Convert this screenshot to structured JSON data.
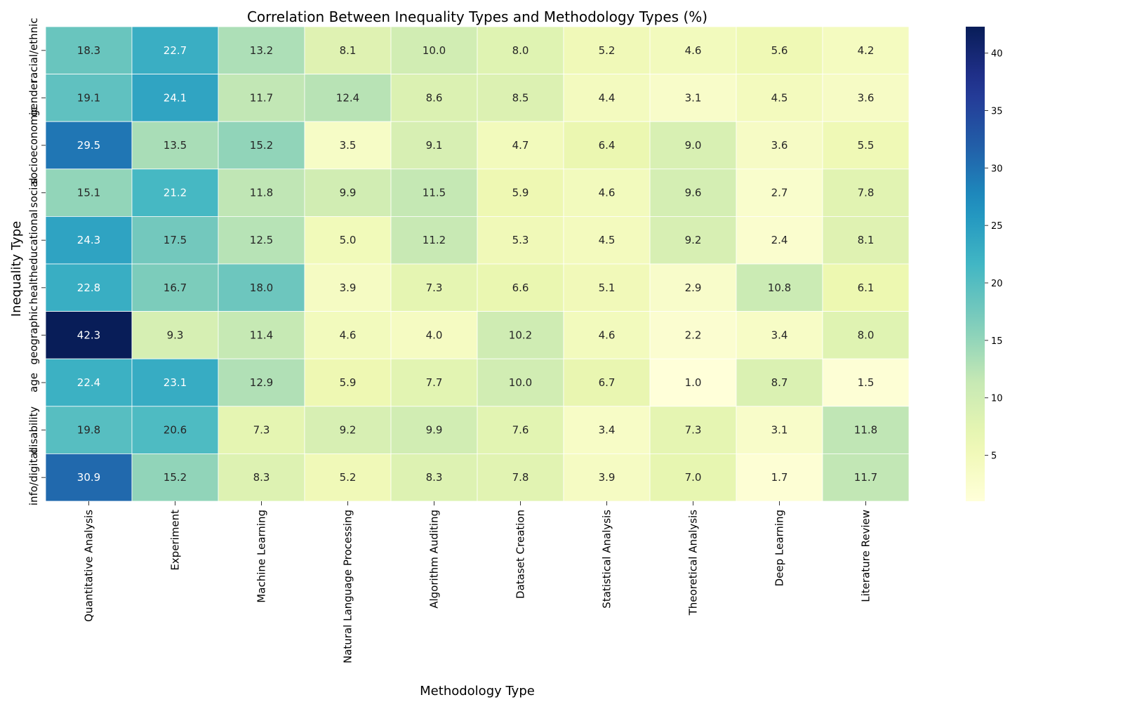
{
  "chart_data": {
    "type": "heatmap",
    "title": "Correlation Between Inequality Types and Methodology Types (%)",
    "xlabel": "Methodology Type",
    "ylabel": "Inequality Type",
    "x_categories": [
      "Quantitative Analysis",
      "Experiment",
      "Machine Learning",
      "Natural Language Processing",
      "Algorithm Auditing",
      "Dataset Creation",
      "Statistical Analysis",
      "Theoretical Analysis",
      "Deep Learning",
      "Literature Review"
    ],
    "y_categories": [
      "racial/ethnic",
      "gender",
      "socioeconomic",
      "social",
      "educational",
      "health",
      "geographic",
      "age",
      "disability",
      "info/digital"
    ],
    "values": [
      [
        18.3,
        22.7,
        13.2,
        8.1,
        10.0,
        8.0,
        5.2,
        4.6,
        5.6,
        4.2
      ],
      [
        19.1,
        24.1,
        11.7,
        12.4,
        8.6,
        8.5,
        4.4,
        3.1,
        4.5,
        3.6
      ],
      [
        29.5,
        13.5,
        15.2,
        3.5,
        9.1,
        4.7,
        6.4,
        9.0,
        3.6,
        5.5
      ],
      [
        15.1,
        21.2,
        11.8,
        9.9,
        11.5,
        5.9,
        4.6,
        9.6,
        2.7,
        7.8
      ],
      [
        24.3,
        17.5,
        12.5,
        5.0,
        11.2,
        5.3,
        4.5,
        9.2,
        2.4,
        8.1
      ],
      [
        22.8,
        16.7,
        18.0,
        3.9,
        7.3,
        6.6,
        5.1,
        2.9,
        10.8,
        6.1
      ],
      [
        42.3,
        9.3,
        11.4,
        4.6,
        4.0,
        10.2,
        4.6,
        2.2,
        3.4,
        8.0
      ],
      [
        22.4,
        23.1,
        12.9,
        5.9,
        7.7,
        10.0,
        6.7,
        1.0,
        8.7,
        1.5
      ],
      [
        19.8,
        20.6,
        7.3,
        9.2,
        9.9,
        7.6,
        3.4,
        7.3,
        3.1,
        11.8
      ],
      [
        30.9,
        15.2,
        8.3,
        5.2,
        8.3,
        7.8,
        3.9,
        7.0,
        1.7,
        11.7
      ]
    ],
    "value_format": "0.1f",
    "colormap": "YlGnBu",
    "colorbar": {
      "min": 1.0,
      "max": 42.3,
      "ticks": [
        5,
        10,
        15,
        20,
        25,
        30,
        35,
        40
      ]
    },
    "grid": false,
    "legend": "colorbar-right"
  }
}
